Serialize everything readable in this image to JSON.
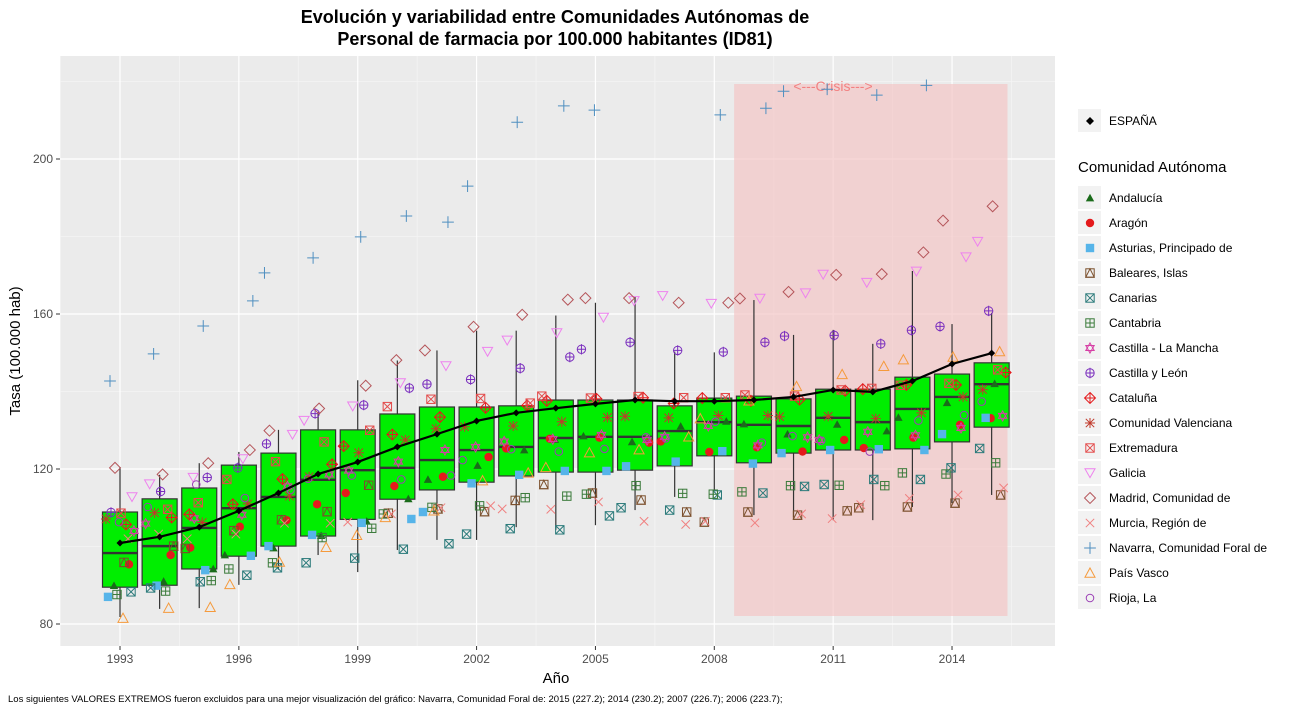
{
  "chart_data": {
    "type": "boxplot",
    "title": [
      "Evolución y variabilidad entre Comunidades Autónomas de",
      "Personal de farmacia por 100.000 habitantes (ID81)"
    ],
    "xlabel": "Año",
    "ylabel": "Tasa (100.000 hab)",
    "x_ticks": [
      1993,
      1996,
      1999,
      2002,
      2005,
      2008,
      2011,
      2014
    ],
    "y_ticks": [
      80,
      120,
      160,
      200
    ],
    "xlim": [
      1991.5,
      2016.2
    ],
    "ylim": [
      69,
      222
    ],
    "grid": true,
    "box_color": "#00ee00",
    "years": [
      1993,
      1994,
      1995,
      1996,
      1997,
      1998,
      1999,
      2000,
      2001,
      2002,
      2003,
      2004,
      2005,
      2006,
      2007,
      2008,
      2009,
      2010,
      2011,
      2012,
      2013,
      2014,
      2015
    ],
    "boxes": [
      {
        "year": 1993,
        "whisker_low": 81.8,
        "q1": 89.5,
        "median": 98.3,
        "q3": 108.9,
        "whisker_high": 120.5
      },
      {
        "year": 1994,
        "whisker_low": 83.9,
        "q1": 90.0,
        "median": 100.1,
        "q3": 112.3,
        "whisker_high": 118.5
      },
      {
        "year": 1995,
        "whisker_low": 84.1,
        "q1": 94.2,
        "median": 104.8,
        "q3": 115.1,
        "whisker_high": 121.5
      },
      {
        "year": 1996,
        "whisker_low": 90.1,
        "q1": 97.5,
        "median": 109.9,
        "q3": 121.0,
        "whisker_high": 124.4
      },
      {
        "year": 1997,
        "whisker_low": 94.0,
        "q1": 100.1,
        "median": 112.8,
        "q3": 124.1,
        "whisker_high": 130.1
      },
      {
        "year": 1998,
        "whisker_low": 97.8,
        "q1": 102.7,
        "median": 117.2,
        "q3": 130.1,
        "whisker_high": 134.7
      },
      {
        "year": 1999,
        "whisker_low": 93.4,
        "q1": 107.0,
        "median": 119.7,
        "q3": 130.1,
        "whisker_high": 142.9
      },
      {
        "year": 2000,
        "whisker_low": 99.1,
        "q1": 112.2,
        "median": 120.3,
        "q3": 134.2,
        "whisker_high": 148.0
      },
      {
        "year": 2001,
        "whisker_low": 101.7,
        "q1": 114.6,
        "median": 122.3,
        "q3": 136.0,
        "whisker_high": 150.6
      },
      {
        "year": 2002,
        "whisker_low": 101.7,
        "q1": 116.6,
        "median": 124.9,
        "q3": 136.0,
        "whisker_high": 155.7
      },
      {
        "year": 2003,
        "whisker_low": 105.0,
        "q1": 118.2,
        "median": 125.7,
        "q3": 136.3,
        "whisker_high": 155.7
      },
      {
        "year": 2004,
        "whisker_low": 104.3,
        "q1": 119.2,
        "median": 128.0,
        "q3": 137.8,
        "whisker_high": 159.6
      },
      {
        "year": 2005,
        "whisker_low": 105.5,
        "q1": 119.2,
        "median": 128.3,
        "q3": 137.8,
        "whisker_high": 162.9
      },
      {
        "year": 2006,
        "whisker_low": 109.4,
        "q1": 119.7,
        "median": 128.3,
        "q3": 137.8,
        "whisker_high": 164.5
      },
      {
        "year": 2007,
        "whisker_low": 112.8,
        "q1": 120.8,
        "median": 129.8,
        "q3": 136.3,
        "whisker_high": 150.3
      },
      {
        "year": 2008,
        "whisker_low": 114.6,
        "q1": 123.4,
        "median": 132.1,
        "q3": 138.3,
        "whisker_high": 150.1
      },
      {
        "year": 2009,
        "whisker_low": 108.1,
        "q1": 121.6,
        "median": 131.4,
        "q3": 138.8,
        "whisker_high": 163.6
      },
      {
        "year": 2010,
        "whisker_low": 107.6,
        "q1": 124.1,
        "median": 131.1,
        "q3": 138.1,
        "whisker_high": 154.6
      },
      {
        "year": 2011,
        "whisker_low": 106.8,
        "q1": 124.9,
        "median": 133.2,
        "q3": 140.6,
        "whisker_high": 155.9
      },
      {
        "year": 2012,
        "whisker_low": 106.8,
        "q1": 124.9,
        "median": 132.1,
        "q3": 140.6,
        "whisker_high": 152.3
      },
      {
        "year": 2013,
        "whisker_low": 110.2,
        "q1": 125.2,
        "median": 135.5,
        "q3": 143.7,
        "whisker_high": 171.1
      },
      {
        "year": 2014,
        "whisker_low": 111.2,
        "q1": 127.0,
        "median": 138.6,
        "q3": 144.5,
        "whisker_high": 157.4
      },
      {
        "year": 2015,
        "whisker_low": 113.3,
        "q1": 130.8,
        "median": 141.9,
        "q3": 147.4,
        "whisker_high": 160.3
      }
    ],
    "espana": {
      "name": "ESPAÑA",
      "values": [
        100.9,
        102.5,
        105.0,
        109.2,
        113.8,
        118.7,
        121.8,
        125.7,
        129.0,
        132.4,
        134.5,
        135.7,
        136.8,
        137.8,
        137.5,
        137.5,
        137.8,
        138.6,
        140.4,
        139.9,
        142.7,
        147.1,
        149.9
      ]
    },
    "series": [
      {
        "name": "Andalucía",
        "shape": "triangle-filled",
        "color": "#1a6b1a",
        "values": [
          89.9,
          91.0,
          94.2,
          97.8,
          99.6,
          102.8,
          106.5,
          112.3,
          117.3,
          120.9,
          124.9,
          127.6,
          128.5,
          127.0,
          131.0,
          132.3,
          131.6,
          129.0,
          131.5,
          129.8,
          133.3,
          137.1,
          142.0
        ]
      },
      {
        "name": "Aragón",
        "shape": "circle-filled",
        "color": "#e41a1c",
        "values": [
          95.4,
          97.8,
          99.7,
          105.1,
          106.8,
          110.9,
          113.8,
          115.6,
          118.0,
          123.1,
          125.3,
          127.8,
          128.1,
          126.8,
          127.1,
          124.4,
          125.6,
          124.5,
          127.5,
          125.4,
          128.1,
          131.4,
          133.1
        ]
      },
      {
        "name": "Asturias, Principado de",
        "shape": "square-filled",
        "color": "#56b4e9",
        "values": [
          87.0,
          89.9,
          93.9,
          97.6,
          100.1,
          103.0,
          106.1,
          107.1,
          108.9,
          116.3,
          118.5,
          119.5,
          119.5,
          120.7,
          121.9,
          124.6,
          121.4,
          124.1,
          124.9,
          125.1,
          124.9,
          129.0,
          133.2
        ]
      },
      {
        "name": "Baleares, Islas",
        "shape": "square-triangle",
        "color": "#7b4f2c",
        "values": [
          95.9,
          100.1,
          99.5,
          104.1,
          106.9,
          109.0,
          115.8,
          108.6,
          109.7,
          109.0,
          111.9,
          116.0,
          113.8,
          112.0,
          108.9,
          106.3,
          108.9,
          108.1,
          109.2,
          110.0,
          110.2,
          111.2,
          113.3
        ]
      },
      {
        "name": "Canarias",
        "shape": "square-x",
        "color": "#2a7a7a",
        "values": [
          88.3,
          89.3,
          90.9,
          92.6,
          94.5,
          95.8,
          97.0,
          99.3,
          100.7,
          103.2,
          104.6,
          104.3,
          107.9,
          110.0,
          109.4,
          113.3,
          113.8,
          115.5,
          116.0,
          117.3,
          117.3,
          120.3,
          125.3
        ]
      },
      {
        "name": "Cantabria",
        "shape": "square-plus",
        "color": "#3a7a3a",
        "values": [
          87.6,
          88.5,
          91.2,
          94.2,
          95.8,
          102.3,
          104.7,
          108.4,
          110.1,
          110.5,
          112.6,
          113.0,
          113.5,
          115.7,
          113.7,
          113.5,
          114.1,
          115.7,
          115.8,
          115.7,
          119.0,
          118.7,
          121.6
        ]
      },
      {
        "name": "Castilla - La Mancha",
        "shape": "star-of-david",
        "color": "#d63fa5",
        "values": [
          104.0,
          105.9,
          107.3,
          108.2,
          115.5,
          118.6,
          119.6,
          121.9,
          124.9,
          125.7,
          127.1,
          127.7,
          128.8,
          127.5,
          128.3,
          131.1,
          126.1,
          128.2,
          127.5,
          129.6,
          128.7,
          130.6,
          133.7
        ]
      },
      {
        "name": "Castilla y León",
        "shape": "circle-plus",
        "color": "#7b2fbe",
        "values": [
          108.8,
          114.2,
          117.8,
          120.3,
          126.5,
          134.3,
          136.5,
          140.9,
          141.9,
          143.1,
          146.0,
          148.9,
          150.9,
          152.7,
          150.6,
          150.2,
          152.7,
          154.3,
          154.5,
          152.3,
          155.8,
          156.8,
          160.8
        ]
      },
      {
        "name": "Cataluña",
        "shape": "diamond-plus",
        "color": "#e41a1c",
        "values": [
          105.7,
          107.5,
          108.3,
          110.9,
          117.4,
          121.2,
          125.9,
          128.9,
          133.4,
          135.8,
          136.4,
          137.6,
          138.1,
          138.4,
          136.9,
          138.3,
          137.6,
          137.9,
          140.2,
          140.6,
          141.7,
          141.7,
          144.9
        ]
      },
      {
        "name": "Comunidad Valenciana",
        "shape": "asterisk",
        "color": "#c0392b",
        "values": [
          107.1,
          108.7,
          106.2,
          111.0,
          113.0,
          118.0,
          124.2,
          127.5,
          130.4,
          130.9,
          131.1,
          132.2,
          133.3,
          133.6,
          133.2,
          133.8,
          133.8,
          133.5,
          133.6,
          133.0,
          134.5,
          138.6,
          140.5
        ]
      },
      {
        "name": "Extremadura",
        "shape": "square-x",
        "color": "#e34a4a",
        "values": [
          108.6,
          109.6,
          111.3,
          117.3,
          121.9,
          127.0,
          130.0,
          136.1,
          138.0,
          138.2,
          137.0,
          138.8,
          138.3,
          138.7,
          138.4,
          138.4,
          139.1,
          138.8,
          140.4,
          140.8,
          141.6,
          142.1,
          145.6
        ]
      },
      {
        "name": "Galicia",
        "shape": "triangle-down",
        "color": "#ee82ee",
        "values": [
          112.8,
          116.1,
          117.8,
          122.6,
          128.9,
          132.5,
          136.2,
          142.2,
          146.6,
          150.3,
          153.2,
          155.1,
          159.1,
          163.4,
          164.7,
          162.7,
          164.0,
          165.4,
          170.2,
          168.1,
          171.0,
          174.7,
          178.7
        ]
      },
      {
        "name": "Madrid, Comunidad de",
        "shape": "diamond",
        "color": "#b5555a",
        "values": [
          120.3,
          118.6,
          121.5,
          124.9,
          129.9,
          135.6,
          141.5,
          148.1,
          150.6,
          156.7,
          159.8,
          163.7,
          164.1,
          164.1,
          162.9,
          162.9,
          164.0,
          165.7,
          170.1,
          170.3,
          175.9,
          184.1,
          187.8
        ]
      },
      {
        "name": "Murcia, Región de",
        "shape": "x",
        "color": "#f08080",
        "values": [
          102.0,
          103.2,
          102.0,
          103.2,
          106.0,
          106.0,
          106.3,
          108.4,
          110.0,
          110.5,
          109.7,
          109.6,
          111.5,
          106.5,
          105.7,
          106.5,
          106.1,
          108.4,
          107.2,
          110.8,
          112.4,
          113.3,
          115.1
        ]
      },
      {
        "name": "Navarra, Comunidad Foral de",
        "shape": "plus",
        "color": "#4f8fc0",
        "values": [
          142.7,
          149.7,
          156.9,
          163.4,
          170.6,
          174.5,
          179.9,
          185.3,
          183.7,
          193.0,
          209.5,
          213.7,
          212.6,
          null,
          null,
          211.4,
          213.1,
          217.5,
          218.0,
          216.5,
          219.0,
          null,
          null
        ]
      },
      {
        "name": "País Vasco",
        "shape": "triangle-open",
        "color": "#f59a3c",
        "values": [
          81.5,
          84.1,
          84.3,
          90.2,
          96.0,
          99.8,
          102.9,
          107.5,
          109.2,
          117.0,
          119.0,
          120.4,
          124.2,
          125.0,
          128.3,
          133.0,
          137.6,
          141.3,
          144.4,
          146.5,
          148.2,
          148.9,
          150.3
        ]
      },
      {
        "name": "Rioja, La",
        "shape": "circle-open",
        "color": "#9b3fb5",
        "values": [
          106.3,
          110.2,
          116.0,
          112.5,
          114.6,
          117.5,
          118.3,
          117.3,
          118.3,
          122.3,
          125.1,
          124.5,
          125.2,
          128.2,
          127.9,
          132.2,
          126.8,
          128.5,
          127.3,
          124.5,
          132.5,
          133.9,
          137.4
        ]
      }
    ],
    "excluded_note": "Los siguientes VALORES EXTREMOS fueron excluidos para una mejor visualización del gráfico: Navarra, Comunidad Foral de: 2015 (227.2); 2014 (230.2); 2007 (226.7); 2006 (223.7);",
    "annotation": {
      "text": "<---Crisis--->",
      "x_start": 2008.5,
      "x_end": 2015.4,
      "color": "#f28080",
      "fill": "#f4c6c6"
    },
    "legend": {
      "position": "right",
      "espana_label": "ESPAÑA",
      "title": "Comunidad Autónoma"
    }
  }
}
